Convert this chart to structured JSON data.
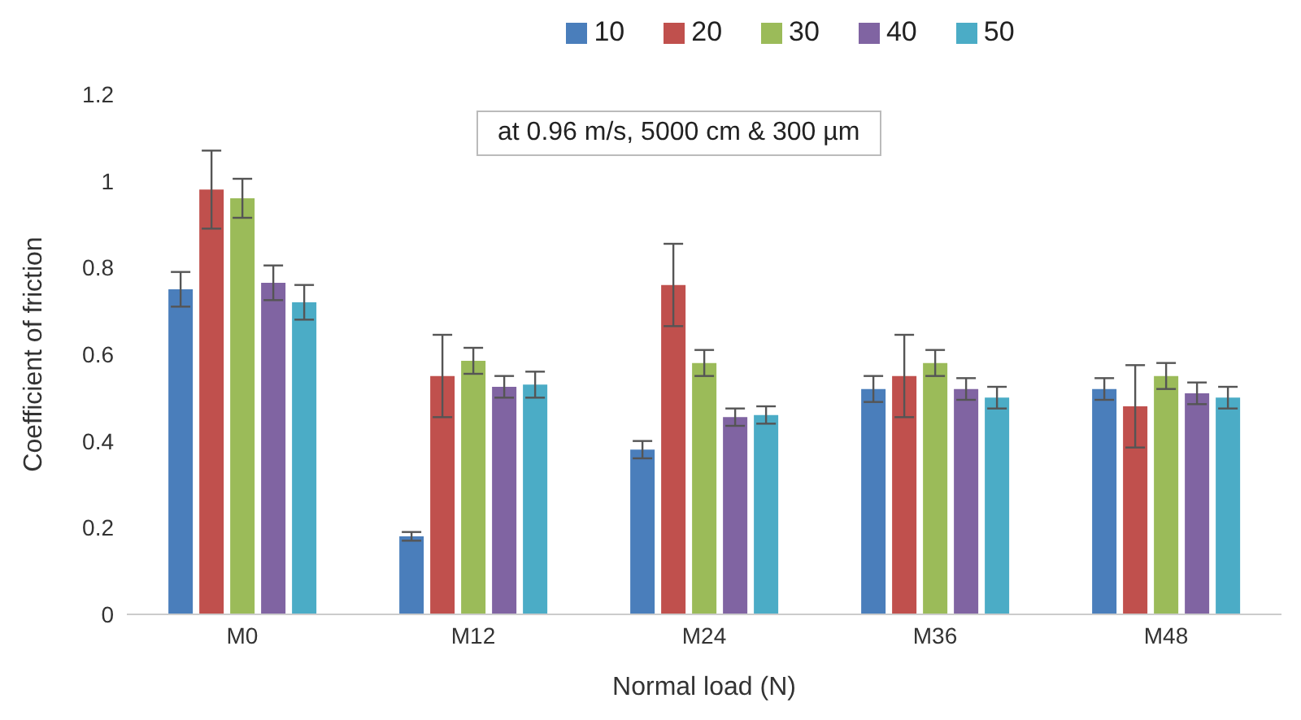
{
  "chart_data": {
    "type": "bar",
    "xlabel": "Normal load (N)",
    "ylabel": "Coefficient of friction",
    "categories": [
      "M0",
      "M12",
      "M24",
      "M36",
      "M48"
    ],
    "series": [
      {
        "name": "10",
        "color": "#4a7ebb",
        "values": [
          0.75,
          0.18,
          0.38,
          0.52,
          0.52
        ],
        "errors": [
          0.04,
          0.01,
          0.02,
          0.03,
          0.025
        ]
      },
      {
        "name": "20",
        "color": "#c0504d",
        "values": [
          0.98,
          0.55,
          0.76,
          0.55,
          0.48
        ],
        "errors": [
          0.09,
          0.095,
          0.095,
          0.095,
          0.095
        ]
      },
      {
        "name": "30",
        "color": "#9bbb59",
        "values": [
          0.96,
          0.585,
          0.58,
          0.58,
          0.55
        ],
        "errors": [
          0.045,
          0.03,
          0.03,
          0.03,
          0.03
        ]
      },
      {
        "name": "40",
        "color": "#8064a2",
        "values": [
          0.765,
          0.525,
          0.455,
          0.52,
          0.51
        ],
        "errors": [
          0.04,
          0.025,
          0.02,
          0.025,
          0.025
        ]
      },
      {
        "name": "50",
        "color": "#4bacc6",
        "values": [
          0.72,
          0.53,
          0.46,
          0.5,
          0.5
        ],
        "errors": [
          0.04,
          0.03,
          0.02,
          0.025,
          0.025
        ]
      }
    ],
    "ylim": [
      0,
      1.2
    ],
    "yticks": [
      0,
      0.2,
      0.4,
      0.6,
      0.8,
      1,
      1.2
    ],
    "grid": false,
    "legend": "top",
    "annotations": [
      "at 0.96 m/s, 5000 cm & 300 µm"
    ]
  }
}
